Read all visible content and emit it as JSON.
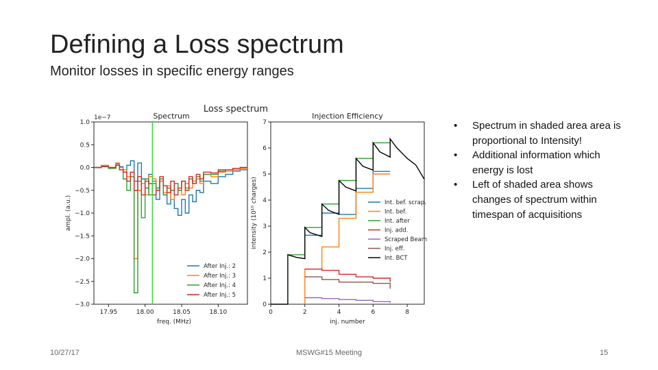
{
  "slide": {
    "title": "Defining a Loss spectrum",
    "subtitle": "Monitor losses in specific energy ranges",
    "bullets": [
      "Spectrum in shaded area area is proportional to Intensity!",
      "Additional information which energy is lost",
      "Left of shaded area shows changes of spectrum within timespan of acquisitions"
    ],
    "footer": {
      "date": "10/27/17",
      "meeting": "MSWG#15 Meeting",
      "page": "15"
    }
  },
  "chart_data": [
    {
      "type": "line",
      "suptitle": "Loss spectrum",
      "title": "Spectrum",
      "xlabel": "freq. (MHz)",
      "ylabel": "ampl. (a.u.)",
      "offset_text": "1e−7",
      "xlim": [
        17.93,
        18.14
      ],
      "ylim": [
        -3.0,
        1.0
      ],
      "xticks": [
        "17.95",
        "18.00",
        "18.05",
        "18.10"
      ],
      "yticks": [
        "1.0",
        "0.5",
        "0.0",
        "−0.5",
        "−1.0",
        "−1.5",
        "−2.0",
        "−2.5",
        "−3.0"
      ],
      "vline_x": 18.01,
      "legend_position": "lower-right",
      "series": [
        {
          "name": "After Inj.: 2",
          "color": "#1f77b4",
          "x": [
            17.93,
            17.94,
            17.95,
            17.96,
            17.965,
            17.97,
            17.975,
            17.98,
            17.985,
            17.99,
            17.995,
            18.0,
            18.005,
            18.01,
            18.015,
            18.02,
            18.025,
            18.03,
            18.035,
            18.04,
            18.045,
            18.05,
            18.055,
            18.06,
            18.065,
            18.07,
            18.075,
            18.08,
            18.09,
            18.1,
            18.11,
            18.12,
            18.13,
            18.14
          ],
          "y": [
            0.0,
            0.03,
            0.0,
            0.08,
            0.02,
            -0.1,
            0.05,
            0.15,
            -0.3,
            0.1,
            -0.25,
            -0.45,
            -0.15,
            -0.3,
            -0.7,
            -0.3,
            -0.6,
            -0.8,
            -0.5,
            -0.9,
            -1.05,
            -0.7,
            -1.0,
            -0.6,
            -0.75,
            -0.5,
            -0.55,
            -0.3,
            -0.35,
            -0.2,
            -0.15,
            -0.08,
            -0.05,
            0.0
          ]
        },
        {
          "name": "After Inj.: 3",
          "color": "#ff7f0e",
          "x": [
            17.93,
            17.94,
            17.95,
            17.96,
            17.965,
            17.97,
            17.975,
            17.98,
            17.985,
            17.99,
            17.995,
            18.0,
            18.005,
            18.01,
            18.015,
            18.02,
            18.025,
            18.03,
            18.035,
            18.04,
            18.045,
            18.05,
            18.055,
            18.06,
            18.065,
            18.07,
            18.075,
            18.08,
            18.09,
            18.1,
            18.11,
            18.12,
            18.13,
            18.14
          ],
          "y": [
            0.0,
            0.05,
            0.0,
            0.1,
            0.0,
            -0.05,
            -0.2,
            -0.1,
            -2.0,
            -0.5,
            -0.35,
            -0.6,
            -0.2,
            -0.25,
            -0.45,
            -0.3,
            -0.55,
            -0.4,
            -0.7,
            -0.35,
            -0.5,
            -0.6,
            -0.35,
            -0.45,
            -0.3,
            -0.25,
            -0.35,
            -0.15,
            -0.2,
            -0.1,
            -0.08,
            -0.05,
            -0.02,
            0.0
          ]
        },
        {
          "name": "After Inj.: 4",
          "color": "#2ca02c",
          "x": [
            17.93,
            17.94,
            17.95,
            17.96,
            17.965,
            17.97,
            17.975,
            17.98,
            17.985,
            17.99,
            17.995,
            18.0,
            18.005,
            18.01,
            18.015,
            18.02,
            18.025,
            18.03,
            18.035,
            18.04,
            18.045,
            18.05,
            18.055,
            18.06,
            18.065,
            18.07,
            18.075,
            18.08,
            18.09,
            18.1,
            18.11,
            18.12,
            18.13,
            18.14
          ],
          "y": [
            0.0,
            0.02,
            -0.02,
            0.05,
            -0.05,
            -0.25,
            -0.5,
            -0.2,
            -2.75,
            -0.3,
            -1.1,
            -0.25,
            -0.6,
            -0.35,
            -0.45,
            -0.25,
            -0.6,
            -0.45,
            -0.5,
            -0.35,
            -0.5,
            -0.3,
            -0.45,
            -0.25,
            -0.35,
            -0.2,
            -0.3,
            -0.15,
            -0.15,
            -0.08,
            -0.05,
            -0.02,
            0.0,
            0.0
          ]
        },
        {
          "name": "After Inj.: 5",
          "color": "#d62728",
          "x": [
            17.93,
            17.94,
            17.95,
            17.96,
            17.965,
            17.97,
            17.975,
            17.98,
            17.985,
            17.99,
            17.995,
            18.0,
            18.005,
            18.01,
            18.015,
            18.02,
            18.025,
            18.03,
            18.035,
            18.04,
            18.045,
            18.05,
            18.055,
            18.06,
            18.065,
            18.07,
            18.075,
            18.08,
            18.09,
            18.1,
            18.11,
            18.12,
            18.13,
            18.14
          ],
          "y": [
            0.0,
            0.02,
            0.0,
            0.05,
            -0.05,
            -0.1,
            -0.3,
            -0.1,
            -0.5,
            -0.2,
            -0.6,
            -0.3,
            -0.35,
            -0.6,
            -0.5,
            -0.2,
            -0.4,
            -0.55,
            -0.3,
            -0.6,
            -0.45,
            -0.3,
            -0.5,
            -0.2,
            -0.35,
            -0.15,
            -0.25,
            -0.1,
            -0.12,
            -0.05,
            -0.05,
            -0.02,
            0.0,
            0.0
          ]
        }
      ]
    },
    {
      "type": "line",
      "title": "Injection Efficiency",
      "xlabel": "inj. number",
      "ylabel": "intensity (10¹⁰ charges)",
      "xlim": [
        0,
        9
      ],
      "ylim": [
        0,
        7
      ],
      "xticks": [
        "0",
        "2",
        "4",
        "6",
        "8"
      ],
      "yticks": [
        "7",
        "6",
        "5",
        "4",
        "3",
        "2",
        "1",
        "0"
      ],
      "legend_position": "center-right",
      "series": [
        {
          "name": "Int. bef. scrap.",
          "color": "#1f77b4",
          "step": true,
          "x": [
            2,
            3,
            3,
            4,
            4,
            5,
            5,
            6,
            6,
            7
          ],
          "y": [
            2.65,
            2.65,
            3.5,
            3.5,
            3.45,
            3.45,
            4.45,
            4.45,
            5.1,
            5.1
          ]
        },
        {
          "name": "Int. bef.",
          "color": "#ff7f0e",
          "step": true,
          "x": [
            2,
            2,
            3,
            3,
            4,
            4,
            5,
            5,
            6,
            6,
            7
          ],
          "y": [
            0,
            1.35,
            1.35,
            2.2,
            2.2,
            3.3,
            3.3,
            4.3,
            4.3,
            5.0,
            5.0
          ]
        },
        {
          "name": "Int. after",
          "color": "#2ca02c",
          "step": true,
          "x": [
            1,
            2,
            2,
            3,
            3,
            4,
            4,
            5,
            5,
            6,
            6,
            7
          ],
          "y": [
            1.9,
            1.9,
            2.95,
            2.95,
            3.85,
            3.85,
            4.75,
            4.75,
            5.6,
            5.6,
            6.2,
            6.2
          ]
        },
        {
          "name": "Inj. add.",
          "color": "#d62728",
          "step": true,
          "x": [
            2,
            3,
            4,
            5,
            6,
            7
          ],
          "y": [
            1.35,
            1.3,
            1.15,
            1.05,
            1.0,
            0.85
          ]
        },
        {
          "name": "Scraped Beam",
          "color": "#9467bd",
          "step": true,
          "x": [
            2,
            3,
            4,
            5,
            6,
            7
          ],
          "y": [
            0.25,
            0.22,
            0.18,
            0.15,
            0.1,
            0.05
          ]
        },
        {
          "name": "Inj. eff.",
          "color": "#8c564b",
          "step": true,
          "x": [
            2,
            3,
            4,
            5,
            6,
            7
          ],
          "y": [
            1.05,
            0.95,
            0.85,
            0.85,
            0.8,
            0.6
          ]
        },
        {
          "name": "Int. BCT",
          "color": "#000000",
          "step": false,
          "x": [
            0,
            1,
            1,
            1.5,
            2,
            2,
            2.3,
            3,
            3,
            3.4,
            4,
            4,
            4.4,
            5,
            5,
            5.4,
            6,
            6,
            6.4,
            7,
            7,
            7.4,
            8,
            8.5,
            9
          ],
          "y": [
            0,
            0,
            1.9,
            1.8,
            1.75,
            2.95,
            2.75,
            2.6,
            3.85,
            3.6,
            3.45,
            4.75,
            4.5,
            4.35,
            5.6,
            5.3,
            5.15,
            6.2,
            5.85,
            5.65,
            6.35,
            6.0,
            5.6,
            5.35,
            4.8
          ]
        }
      ]
    }
  ]
}
